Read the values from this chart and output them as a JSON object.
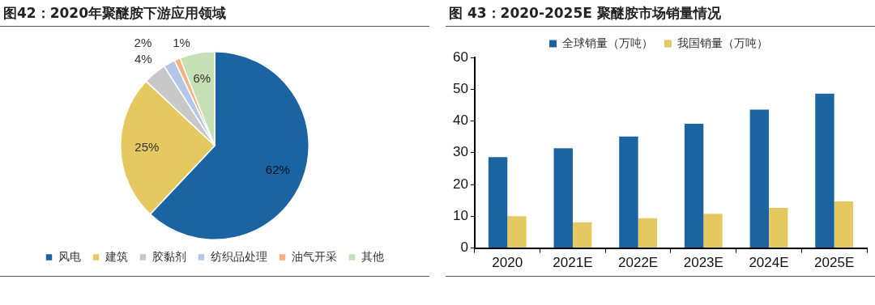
{
  "chart_data": [
    {
      "type": "pie",
      "title": "图42：2020年聚醚胺下游应用领域",
      "categories": [
        "风电",
        "建筑",
        "胶黏剂",
        "纺织品处理",
        "油气开采",
        "其他"
      ],
      "values": [
        62,
        25,
        4,
        2,
        1,
        6
      ],
      "colors": [
        "#1a64a4",
        "#e6c860",
        "#c8c8c8",
        "#b4c7e7",
        "#f4b183",
        "#c5e0b4"
      ],
      "value_labels": [
        "62%",
        "25%",
        "4%",
        "2%",
        "1%",
        "6%"
      ],
      "legend": "bottom"
    },
    {
      "type": "bar",
      "title": "图 43：2020-2025E 聚醚胺市场销量情况",
      "categories": [
        "2020",
        "2021E",
        "2022E",
        "2023E",
        "2024E",
        "2025E"
      ],
      "series": [
        {
          "name": "全球销量（万吨）",
          "color": "#1a64a4",
          "values": [
            28.6,
            31.4,
            35.1,
            39.1,
            43.6,
            48.6
          ]
        },
        {
          "name": "我国销量（万吨）",
          "color": "#e6c860",
          "values": [
            10.0,
            8.1,
            9.4,
            10.8,
            12.6,
            14.7
          ]
        }
      ],
      "ylim": [
        0,
        60
      ],
      "yticks": [
        0,
        10,
        20,
        30,
        40,
        50,
        60
      ],
      "grid": false,
      "legend": "top"
    }
  ]
}
